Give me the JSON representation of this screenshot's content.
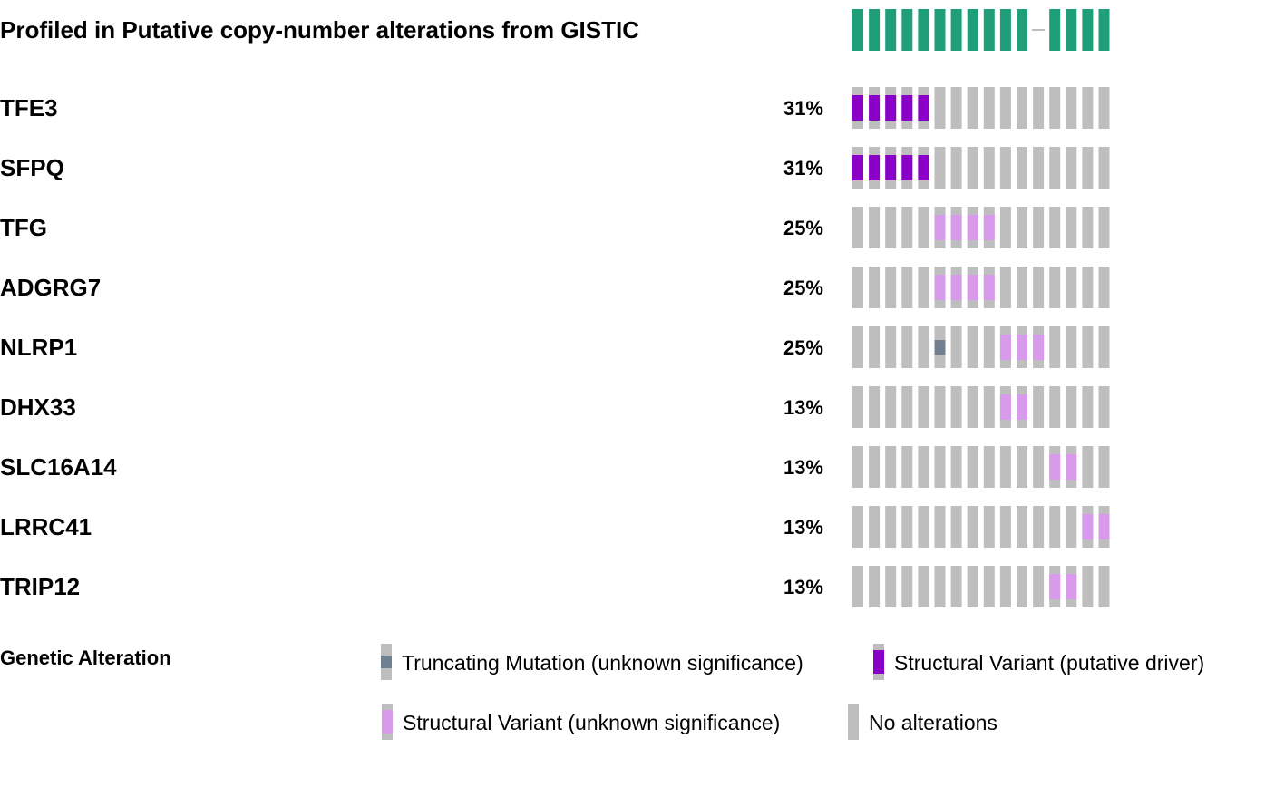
{
  "chart_data": {
    "type": "heatmap",
    "title": "",
    "sample_count": 16,
    "profile_track": {
      "label": "Profiled in Putative copy-number alterations from GISTIC",
      "profiled": [
        true,
        true,
        true,
        true,
        true,
        true,
        true,
        true,
        true,
        true,
        true,
        false,
        true,
        true,
        true,
        true
      ]
    },
    "genes": [
      {
        "name": "TFE3",
        "percent": "31%",
        "cells": [
          "SV_DRIVER",
          "SV_DRIVER",
          "SV_DRIVER",
          "SV_DRIVER",
          "SV_DRIVER",
          "NONE",
          "NONE",
          "NONE",
          "NONE",
          "NONE",
          "NONE",
          "NONE",
          "NONE",
          "NONE",
          "NONE",
          "NONE"
        ]
      },
      {
        "name": "SFPQ",
        "percent": "31%",
        "cells": [
          "SV_DRIVER",
          "SV_DRIVER",
          "SV_DRIVER",
          "SV_DRIVER",
          "SV_DRIVER",
          "NONE",
          "NONE",
          "NONE",
          "NONE",
          "NONE",
          "NONE",
          "NONE",
          "NONE",
          "NONE",
          "NONE",
          "NONE"
        ]
      },
      {
        "name": "TFG",
        "percent": "25%",
        "cells": [
          "NONE",
          "NONE",
          "NONE",
          "NONE",
          "NONE",
          "SV_VUS",
          "SV_VUS",
          "SV_VUS",
          "SV_VUS",
          "NONE",
          "NONE",
          "NONE",
          "NONE",
          "NONE",
          "NONE",
          "NONE"
        ]
      },
      {
        "name": "ADGRG7",
        "percent": "25%",
        "cells": [
          "NONE",
          "NONE",
          "NONE",
          "NONE",
          "NONE",
          "SV_VUS",
          "SV_VUS",
          "SV_VUS",
          "SV_VUS",
          "NONE",
          "NONE",
          "NONE",
          "NONE",
          "NONE",
          "NONE",
          "NONE"
        ]
      },
      {
        "name": "NLRP1",
        "percent": "25%",
        "cells": [
          "NONE",
          "NONE",
          "NONE",
          "NONE",
          "NONE",
          "TRUNC",
          "NONE",
          "NONE",
          "NONE",
          "SV_VUS",
          "SV_VUS",
          "SV_VUS",
          "NONE",
          "NONE",
          "NONE",
          "NONE"
        ]
      },
      {
        "name": "DHX33",
        "percent": "13%",
        "cells": [
          "NONE",
          "NONE",
          "NONE",
          "NONE",
          "NONE",
          "NONE",
          "NONE",
          "NONE",
          "NONE",
          "SV_VUS",
          "SV_VUS",
          "NONE",
          "NONE",
          "NONE",
          "NONE",
          "NONE"
        ]
      },
      {
        "name": "SLC16A14",
        "percent": "13%",
        "cells": [
          "NONE",
          "NONE",
          "NONE",
          "NONE",
          "NONE",
          "NONE",
          "NONE",
          "NONE",
          "NONE",
          "NONE",
          "NONE",
          "NONE",
          "SV_VUS",
          "SV_VUS",
          "NONE",
          "NONE"
        ]
      },
      {
        "name": "LRRC41",
        "percent": "13%",
        "cells": [
          "NONE",
          "NONE",
          "NONE",
          "NONE",
          "NONE",
          "NONE",
          "NONE",
          "NONE",
          "NONE",
          "NONE",
          "NONE",
          "NONE",
          "NONE",
          "NONE",
          "SV_VUS",
          "SV_VUS"
        ]
      },
      {
        "name": "TRIP12",
        "percent": "13%",
        "cells": [
          "NONE",
          "NONE",
          "NONE",
          "NONE",
          "NONE",
          "NONE",
          "NONE",
          "NONE",
          "NONE",
          "NONE",
          "NONE",
          "NONE",
          "SV_VUS",
          "SV_VUS",
          "NONE",
          "NONE"
        ]
      }
    ],
    "legend": {
      "title": "Genetic Alteration",
      "items": [
        {
          "key": "TRUNC",
          "label": "Truncating Mutation (unknown significance)"
        },
        {
          "key": "SV_DRIVER",
          "label": "Structural Variant (putative driver)"
        },
        {
          "key": "SV_VUS",
          "label": "Structural Variant (unknown significance)"
        },
        {
          "key": "NONE",
          "label": "No alterations"
        }
      ]
    },
    "colors": {
      "profiled": "#1f9e7a",
      "not_profiled_line": "#bdbdbd",
      "no_alteration": "#bebebe",
      "sv_driver": "#8b00c9",
      "sv_vus": "#d89aeb",
      "truncating_vus": "#708090"
    }
  }
}
